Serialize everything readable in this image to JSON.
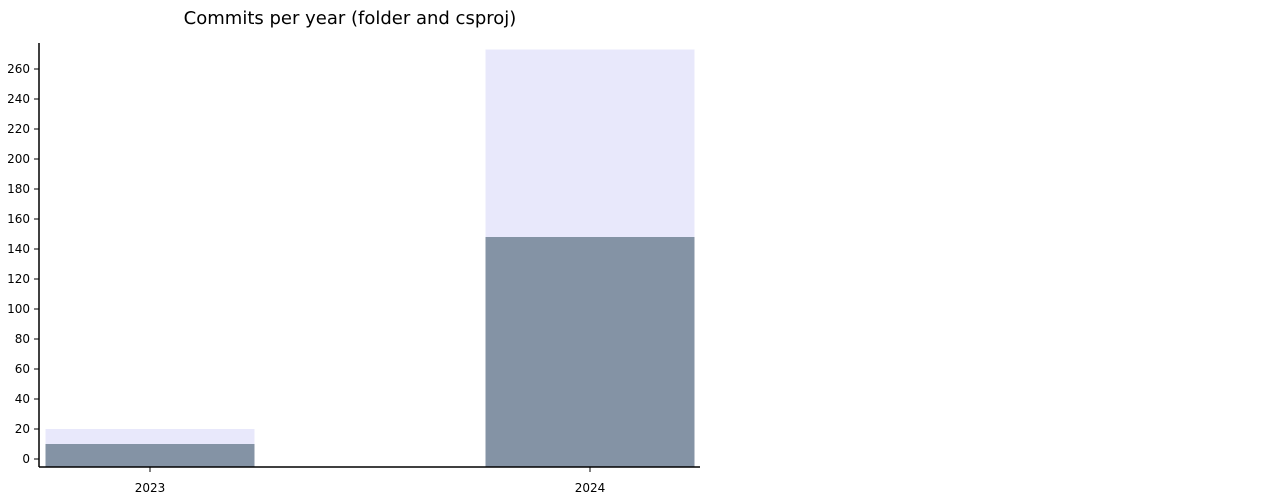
{
  "chart_data": {
    "type": "bar",
    "stacked": true,
    "title": "Commits per year (folder and csproj)",
    "xlabel": "",
    "ylabel": "",
    "categories": [
      "2023",
      "2024"
    ],
    "series": [
      {
        "values": [
          10,
          148
        ],
        "color": "#8493a5"
      },
      {
        "values": [
          10,
          125
        ],
        "color": "#e8e8fb"
      }
    ],
    "ylim": [
      0,
      274
    ],
    "yticks": [
      0,
      20,
      40,
      60,
      80,
      100,
      120,
      140,
      160,
      180,
      200,
      220,
      240,
      260
    ],
    "grid": false,
    "legend": "none"
  }
}
